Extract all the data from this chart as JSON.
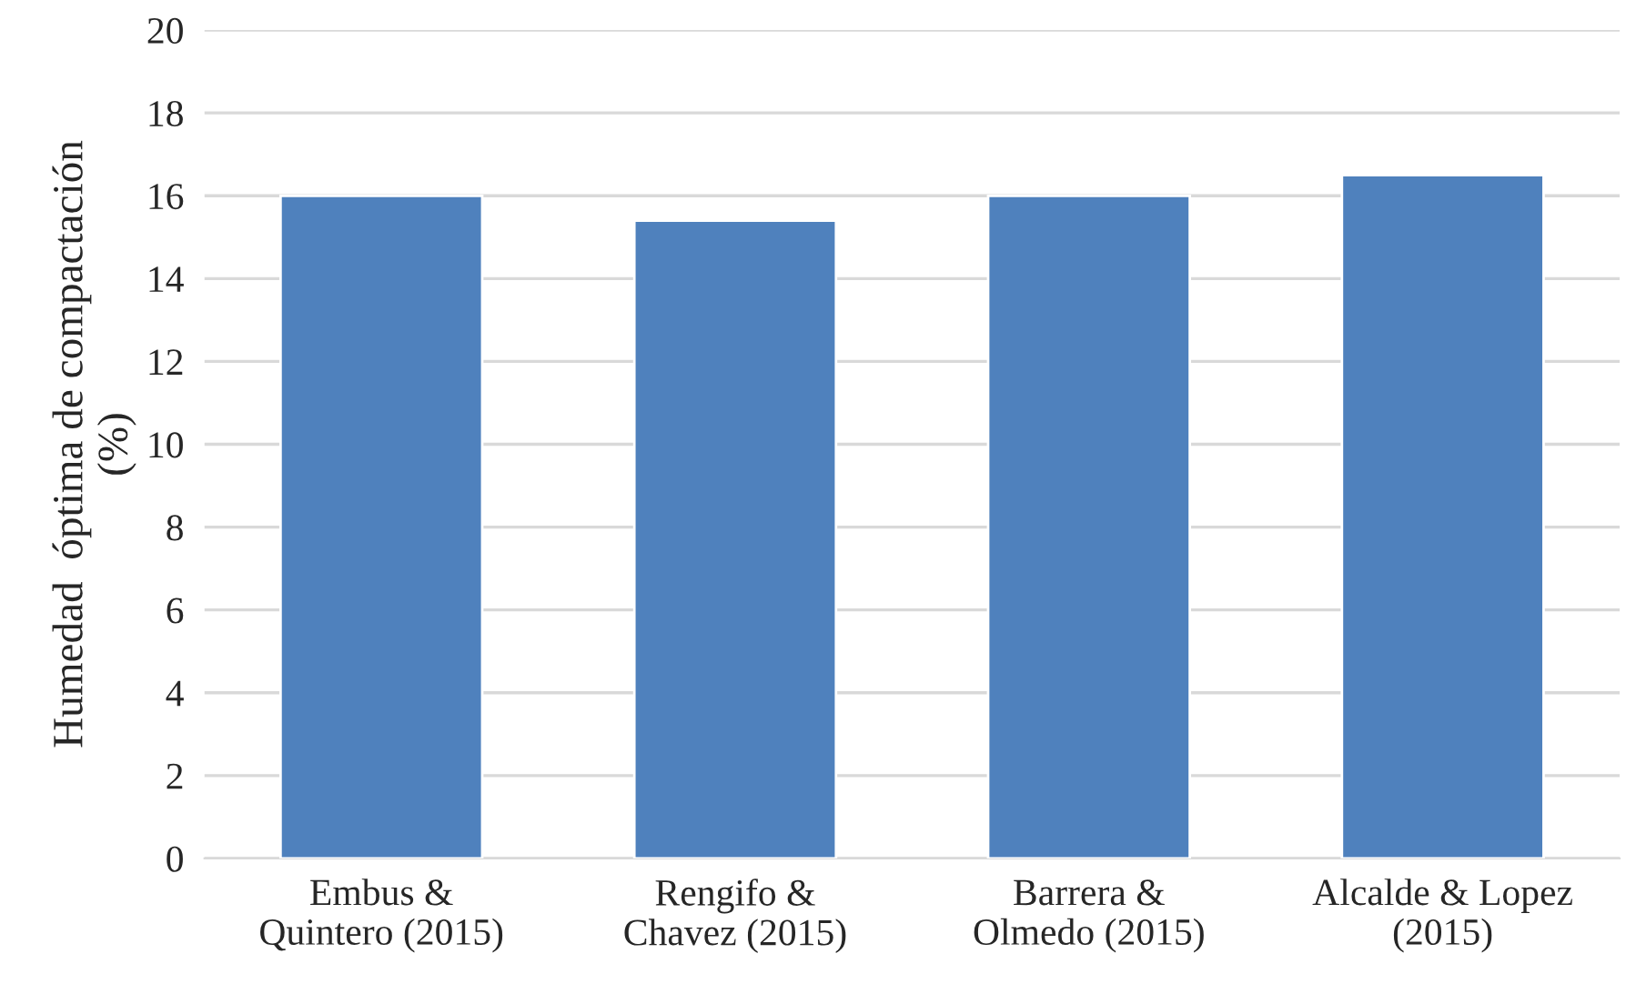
{
  "chart_data": {
    "type": "bar",
    "categories": [
      "Embus &\nQuintero (2015)",
      "Rengifo &\nChavez (2015)",
      "Barrera &\nOlmedo (2015)",
      "Alcalde & Lopez\n(2015)"
    ],
    "values": [
      16,
      15.4,
      16,
      16.5
    ],
    "color": "#4f81bd",
    "ylabel": "Humedad  óptima de compactación\n(%)",
    "ylim": [
      0,
      20
    ],
    "yticks": [
      0,
      2,
      4,
      6,
      8,
      10,
      12,
      14,
      16,
      18,
      20
    ],
    "grid": "y",
    "legend": false
  }
}
